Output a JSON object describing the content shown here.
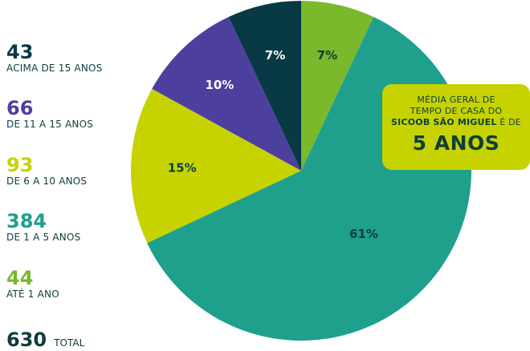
{
  "chart_data": {
    "type": "pie",
    "title": "",
    "slices": [
      {
        "label": "ATÉ 1 ANO",
        "count": "44",
        "value": 7,
        "pct_label": "7%",
        "color": "#7ab82c"
      },
      {
        "label": "DE 1 A 5 ANOS",
        "count": "384",
        "value": 61,
        "pct_label": "61%",
        "color": "#1ea08c"
      },
      {
        "label": "DE 6 A 10 ANOS",
        "count": "93",
        "value": 15,
        "pct_label": "15%",
        "color": "#c7d300"
      },
      {
        "label": "DE 11 A 15 ANOS",
        "count": "66",
        "value": 10,
        "pct_label": "10%",
        "color": "#4d3f9e"
      },
      {
        "label": "ACIMA DE 15 ANOS",
        "count": "43",
        "value": 7,
        "pct_label": "7%",
        "color": "#073a44"
      }
    ],
    "label_color": "#0f3d3d"
  },
  "legend": [
    {
      "count": "43",
      "label": "ACIMA DE 15 ANOS",
      "color": "#073a44"
    },
    {
      "count": "66",
      "label": "DE 11 A 15 ANOS",
      "color": "#4d3f9e"
    },
    {
      "count": "93",
      "label": "DE 6 A 10 ANOS",
      "color": "#c7d300"
    },
    {
      "count": "384",
      "label": "DE 1 A 5 ANOS",
      "color": "#1ea08c"
    },
    {
      "count": "44",
      "label": "ATÉ 1 ANO",
      "color": "#7ab82c"
    }
  ],
  "total": {
    "count": "630",
    "label": "TOTAL"
  },
  "callout": {
    "line1": "MÉDIA GERAL DE",
    "line2": "TEMPO DE CASA DO",
    "line3_bold": "SICOOB SÃO MIGUEL",
    "line3_rest": " É DE",
    "big": "5 ANOS"
  }
}
